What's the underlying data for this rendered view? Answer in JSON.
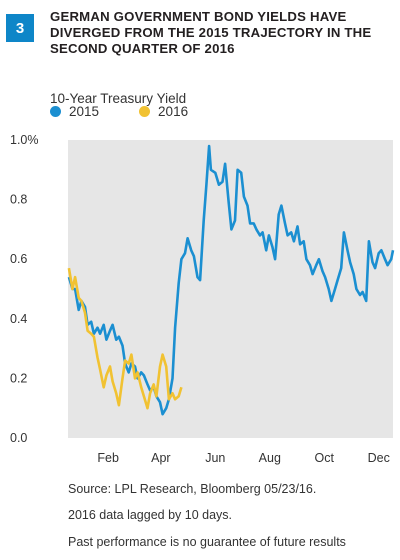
{
  "figure_number": "3",
  "chart_data": {
    "type": "line",
    "title": "GERMAN GOVERNMENT BOND YIELDS HAVE DIVERGED FROM THE 2015 TRAJECTORY IN THE SECOND QUARTER OF 2016",
    "subtitle": "10-Year Treasury Yield",
    "xlabel": "",
    "ylabel": "",
    "x_ticks": [
      "Feb",
      "Apr",
      "Jun",
      "Aug",
      "Oct",
      "Dec"
    ],
    "y_ticks": [
      "0.0",
      "0.2",
      "0.4",
      "0.6",
      "0.8",
      "1.0%"
    ],
    "ylim": [
      0,
      1.0
    ],
    "xlim": [
      "2015-01-01",
      "2015-12-31"
    ],
    "grid": false,
    "legend_position": "top-left",
    "series": [
      {
        "name": "2015",
        "color": "#1b8fd1",
        "points": [
          [
            "01-02",
            0.54
          ],
          [
            "01-06",
            0.5
          ],
          [
            "01-09",
            0.5
          ],
          [
            "01-13",
            0.43
          ],
          [
            "01-16",
            0.46
          ],
          [
            "01-20",
            0.44
          ],
          [
            "01-23",
            0.38
          ],
          [
            "01-27",
            0.39
          ],
          [
            "01-30",
            0.35
          ],
          [
            "02-03",
            0.37
          ],
          [
            "02-06",
            0.35
          ],
          [
            "02-10",
            0.38
          ],
          [
            "02-13",
            0.33
          ],
          [
            "02-17",
            0.36
          ],
          [
            "02-20",
            0.38
          ],
          [
            "02-24",
            0.33
          ],
          [
            "02-27",
            0.34
          ],
          [
            "03-03",
            0.31
          ],
          [
            "03-06",
            0.25
          ],
          [
            "03-10",
            0.22
          ],
          [
            "03-13",
            0.25
          ],
          [
            "03-17",
            0.24
          ],
          [
            "03-20",
            0.2
          ],
          [
            "03-24",
            0.22
          ],
          [
            "03-27",
            0.21
          ],
          [
            "03-31",
            0.18
          ],
          [
            "04-03",
            0.16
          ],
          [
            "04-07",
            0.17
          ],
          [
            "04-10",
            0.14
          ],
          [
            "04-14",
            0.12
          ],
          [
            "04-17",
            0.08
          ],
          [
            "04-21",
            0.1
          ],
          [
            "04-24",
            0.13
          ],
          [
            "04-28",
            0.2
          ],
          [
            "05-01",
            0.37
          ],
          [
            "05-05",
            0.52
          ],
          [
            "05-08",
            0.6
          ],
          [
            "05-12",
            0.62
          ],
          [
            "05-15",
            0.67
          ],
          [
            "05-19",
            0.63
          ],
          [
            "05-22",
            0.61
          ],
          [
            "05-26",
            0.54
          ],
          [
            "05-29",
            0.53
          ],
          [
            "06-02",
            0.73
          ],
          [
            "06-05",
            0.85
          ],
          [
            "06-08",
            0.98
          ],
          [
            "06-10",
            0.9
          ],
          [
            "06-15",
            0.89
          ],
          [
            "06-19",
            0.85
          ],
          [
            "06-23",
            0.86
          ],
          [
            "06-26",
            0.92
          ],
          [
            "06-30",
            0.79
          ],
          [
            "07-03",
            0.7
          ],
          [
            "07-07",
            0.73
          ],
          [
            "07-10",
            0.9
          ],
          [
            "07-14",
            0.89
          ],
          [
            "07-17",
            0.81
          ],
          [
            "07-21",
            0.78
          ],
          [
            "07-24",
            0.72
          ],
          [
            "07-28",
            0.72
          ],
          [
            "07-31",
            0.7
          ],
          [
            "08-04",
            0.68
          ],
          [
            "08-07",
            0.69
          ],
          [
            "08-11",
            0.63
          ],
          [
            "08-14",
            0.68
          ],
          [
            "08-18",
            0.64
          ],
          [
            "08-21",
            0.6
          ],
          [
            "08-25",
            0.75
          ],
          [
            "08-28",
            0.78
          ],
          [
            "09-01",
            0.72
          ],
          [
            "09-04",
            0.68
          ],
          [
            "09-08",
            0.69
          ],
          [
            "09-11",
            0.66
          ],
          [
            "09-15",
            0.71
          ],
          [
            "09-18",
            0.65
          ],
          [
            "09-22",
            0.66
          ],
          [
            "09-25",
            0.6
          ],
          [
            "09-29",
            0.58
          ],
          [
            "10-02",
            0.55
          ],
          [
            "10-06",
            0.58
          ],
          [
            "10-09",
            0.6
          ],
          [
            "10-13",
            0.56
          ],
          [
            "10-16",
            0.54
          ],
          [
            "10-20",
            0.5
          ],
          [
            "10-23",
            0.46
          ],
          [
            "10-27",
            0.5
          ],
          [
            "10-30",
            0.53
          ],
          [
            "11-03",
            0.57
          ],
          [
            "11-06",
            0.69
          ],
          [
            "11-10",
            0.63
          ],
          [
            "11-13",
            0.59
          ],
          [
            "11-17",
            0.55
          ],
          [
            "11-20",
            0.5
          ],
          [
            "11-24",
            0.48
          ],
          [
            "11-27",
            0.49
          ],
          [
            "12-01",
            0.46
          ],
          [
            "12-04",
            0.66
          ],
          [
            "12-08",
            0.59
          ],
          [
            "12-11",
            0.57
          ],
          [
            "12-15",
            0.62
          ],
          [
            "12-18",
            0.63
          ],
          [
            "12-22",
            0.6
          ],
          [
            "12-25",
            0.58
          ],
          [
            "12-29",
            0.6
          ],
          [
            "12-31",
            0.63
          ]
        ]
      },
      {
        "name": "2016",
        "color": "#f1c232",
        "points": [
          [
            "01-02",
            0.57
          ],
          [
            "01-06",
            0.5
          ],
          [
            "01-09",
            0.54
          ],
          [
            "01-13",
            0.47
          ],
          [
            "01-16",
            0.46
          ],
          [
            "01-20",
            0.42
          ],
          [
            "01-23",
            0.36
          ],
          [
            "01-27",
            0.35
          ],
          [
            "01-30",
            0.34
          ],
          [
            "02-03",
            0.27
          ],
          [
            "02-06",
            0.23
          ],
          [
            "02-10",
            0.17
          ],
          [
            "02-13",
            0.21
          ],
          [
            "02-17",
            0.24
          ],
          [
            "02-20",
            0.19
          ],
          [
            "02-24",
            0.15
          ],
          [
            "02-27",
            0.11
          ],
          [
            "03-03",
            0.2
          ],
          [
            "03-06",
            0.26
          ],
          [
            "03-10",
            0.25
          ],
          [
            "03-13",
            0.28
          ],
          [
            "03-17",
            0.2
          ],
          [
            "03-20",
            0.22
          ],
          [
            "03-24",
            0.17
          ],
          [
            "03-27",
            0.14
          ],
          [
            "03-31",
            0.1
          ],
          [
            "04-03",
            0.15
          ],
          [
            "04-07",
            0.18
          ],
          [
            "04-10",
            0.14
          ],
          [
            "04-14",
            0.24
          ],
          [
            "04-17",
            0.28
          ],
          [
            "04-21",
            0.24
          ],
          [
            "04-24",
            0.13
          ],
          [
            "04-28",
            0.15
          ],
          [
            "05-01",
            0.13
          ],
          [
            "05-05",
            0.14
          ],
          [
            "05-08",
            0.17
          ]
        ]
      }
    ]
  },
  "notes": {
    "source": "Source: LPL Research, Bloomberg   05/23/16.",
    "lag": "2016 data lagged by 10 days.",
    "disclaimer": "Past performance is no guarantee of future results"
  }
}
